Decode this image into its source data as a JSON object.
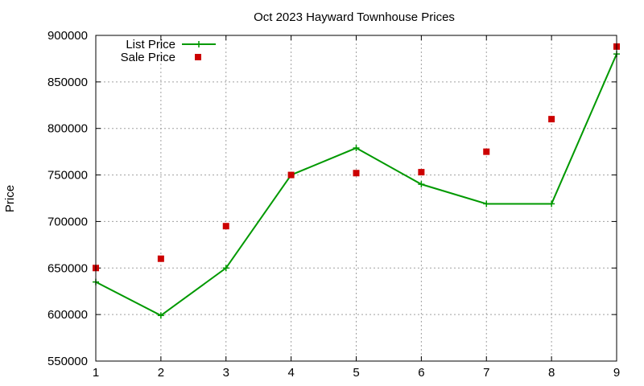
{
  "chart_data": {
    "type": "line",
    "title": "Oct 2023 Hayward Townhouse Prices",
    "xlabel": "",
    "ylabel": "Price",
    "x": [
      1,
      2,
      3,
      4,
      5,
      6,
      7,
      8,
      9
    ],
    "xlim": [
      1,
      9
    ],
    "ylim": [
      550000,
      900000
    ],
    "xticks": [
      "1",
      "2",
      "3",
      "4",
      "5",
      "6",
      "7",
      "8",
      "9"
    ],
    "yticks": [
      "550000",
      "600000",
      "650000",
      "700000",
      "750000",
      "800000",
      "850000",
      "900000"
    ],
    "grid": true,
    "legend_position": "top-left",
    "series": [
      {
        "name": "List Price",
        "style": "line-with-plus-markers",
        "color": "#009900",
        "values": [
          635000,
          599000,
          650000,
          750000,
          779000,
          740000,
          719000,
          719000,
          880000
        ]
      },
      {
        "name": "Sale Price",
        "style": "square-points",
        "color": "#cc0000",
        "values": [
          650000,
          660000,
          695000,
          750000,
          752000,
          753000,
          775000,
          810000,
          888000
        ]
      }
    ]
  }
}
